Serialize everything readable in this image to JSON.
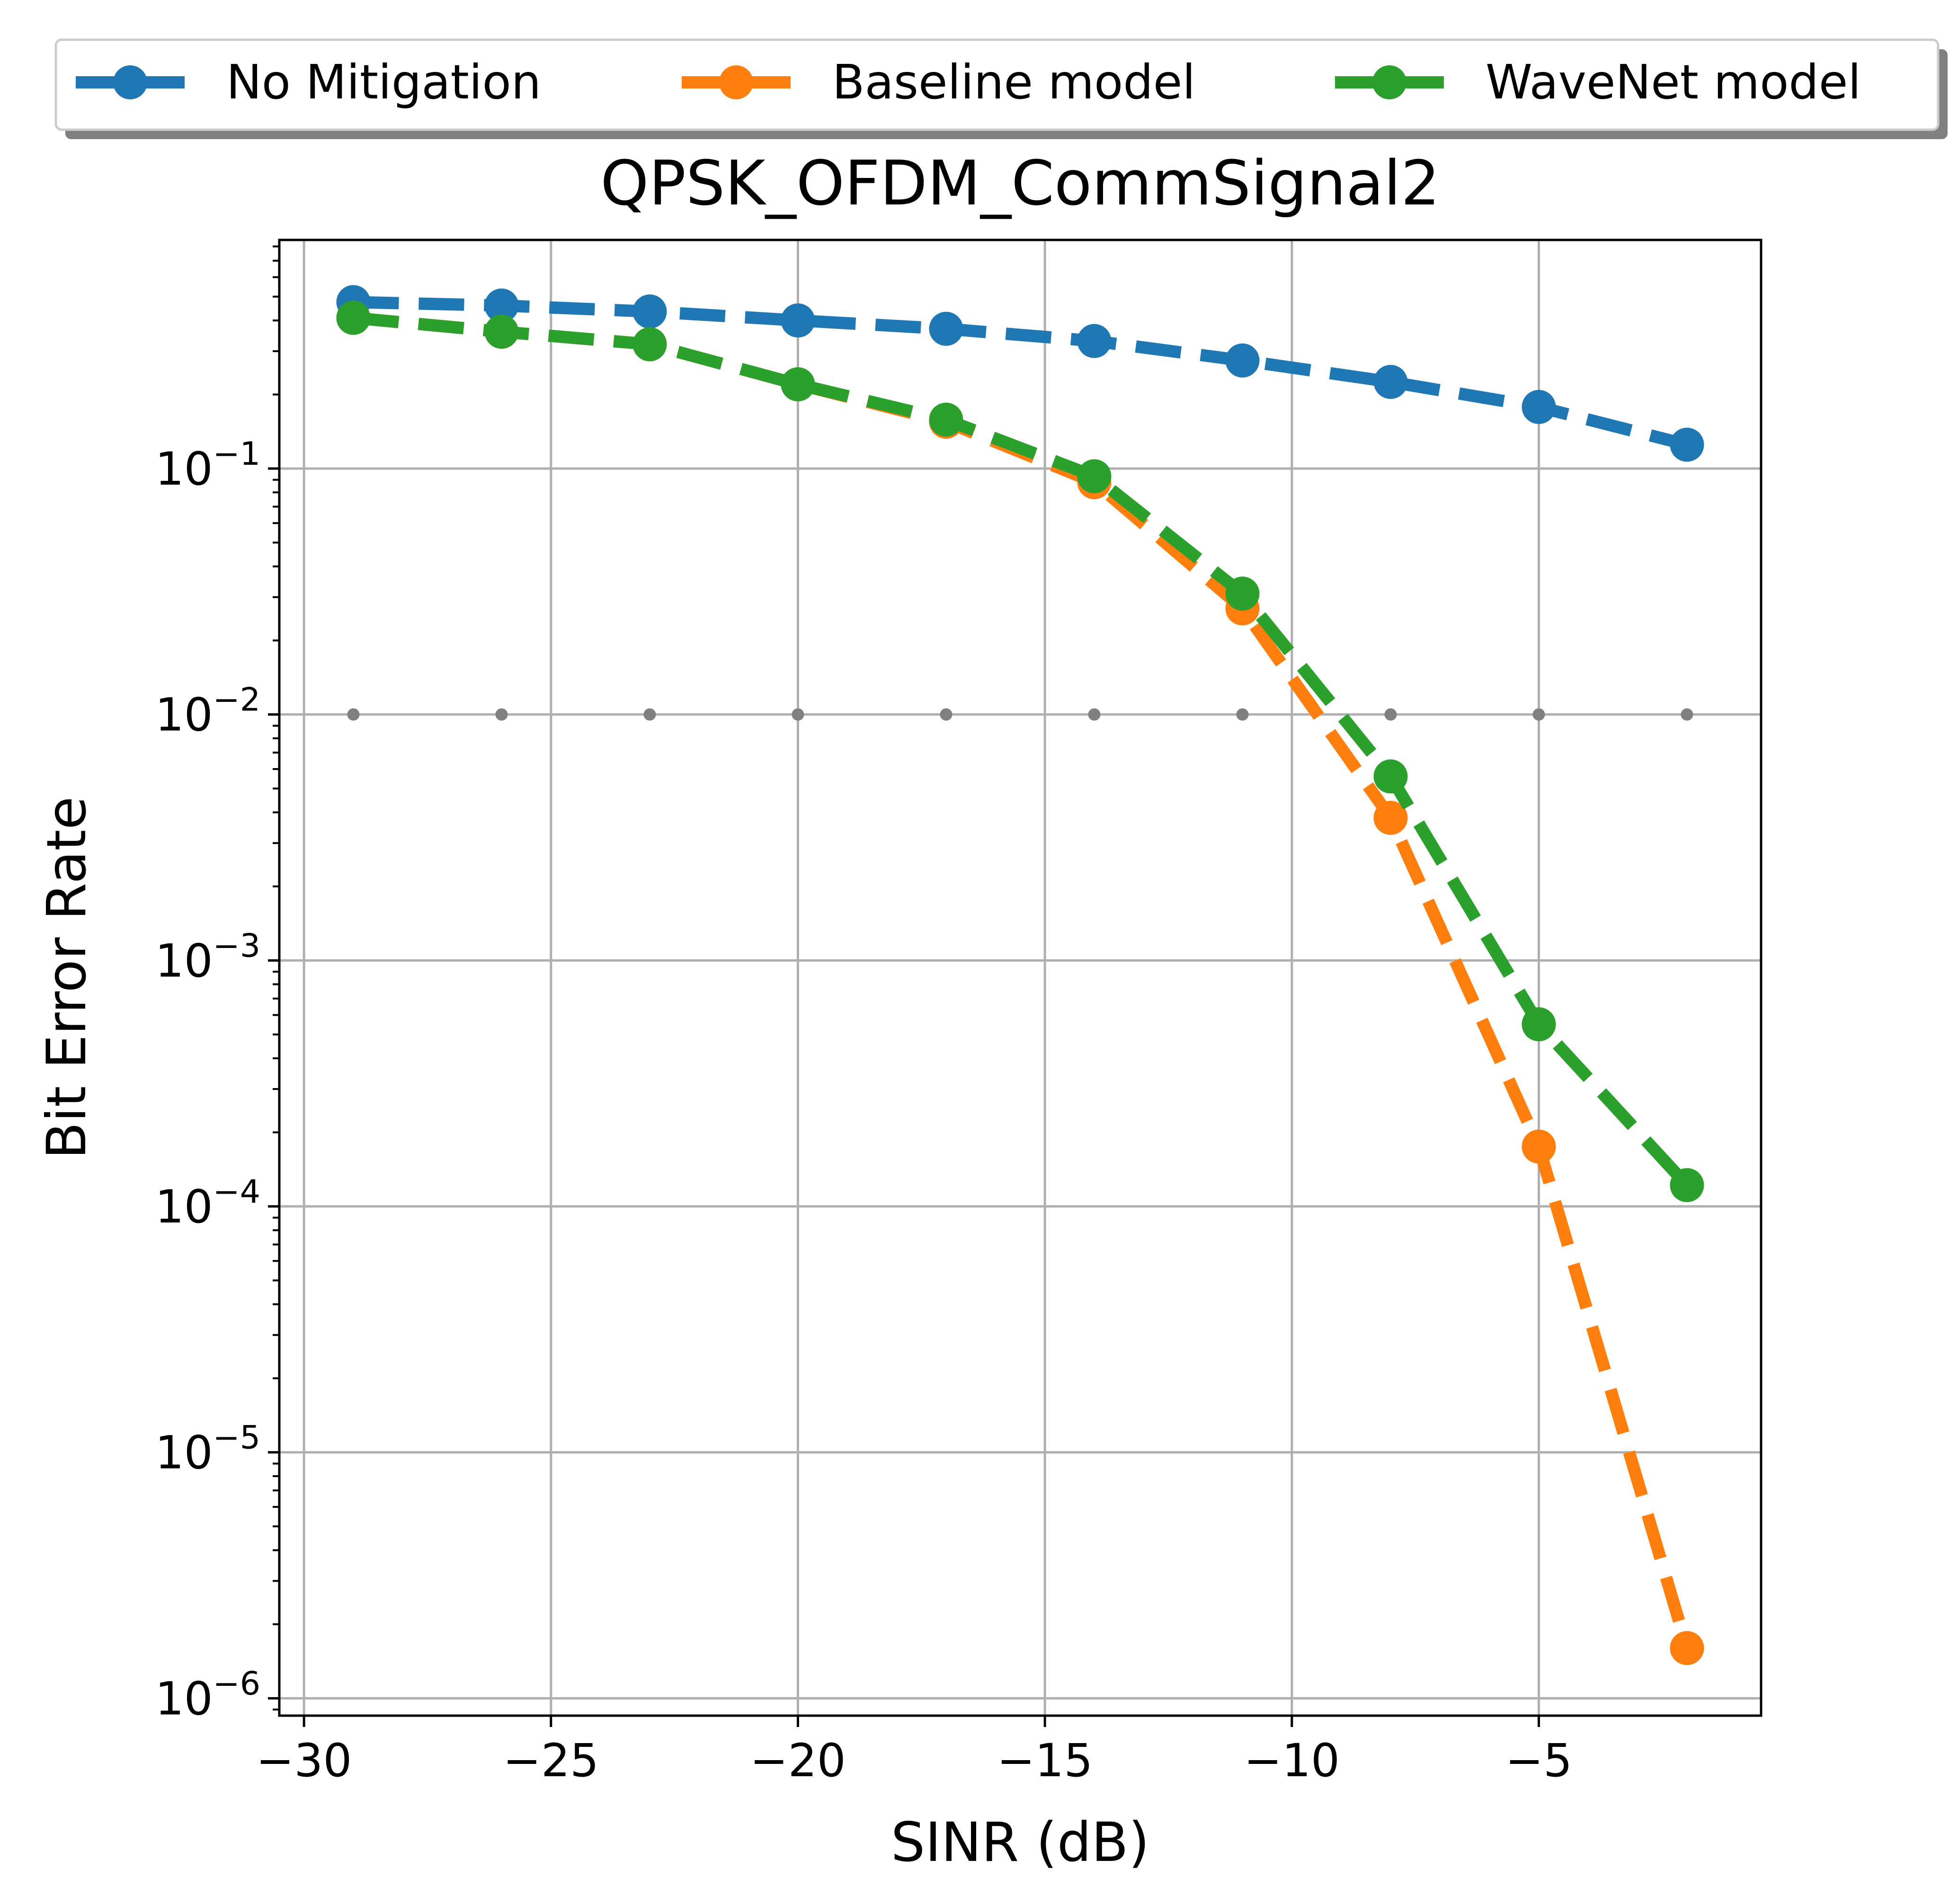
{
  "chart_data": {
    "type": "line",
    "title": "QPSK_OFDM_CommSignal2",
    "xlabel": "SINR (dB)",
    "ylabel": "Bit Error Rate",
    "x": [
      -29,
      -26,
      -23,
      -20,
      -17,
      -14,
      -11,
      -8,
      -5,
      -2
    ],
    "xlim": [
      -30.5,
      -0.5
    ],
    "ylim": [
      8.5e-07,
      0.85
    ],
    "yscale": "log",
    "grid": true,
    "legend_position": "top",
    "x_ticks": [
      -30,
      -25,
      -20,
      -15,
      -10,
      -5
    ],
    "x_tick_labels": [
      "−30",
      "−25",
      "−20",
      "−15",
      "−10",
      "−5"
    ],
    "y_ticks": [
      1e-06,
      1e-05,
      0.0001,
      0.001,
      0.01,
      0.1
    ],
    "y_tick_labels": [
      {
        "base": "10",
        "exp": "−6"
      },
      {
        "base": "10",
        "exp": "−5"
      },
      {
        "base": "10",
        "exp": "−4"
      },
      {
        "base": "10",
        "exp": "−3"
      },
      {
        "base": "10",
        "exp": "−2"
      },
      {
        "base": "10",
        "exp": "−1"
      }
    ],
    "series": [
      {
        "name": "No Mitigation",
        "color": "#1f77b4",
        "values": [
          0.475,
          0.46,
          0.435,
          0.4,
          0.37,
          0.33,
          0.275,
          0.225,
          0.178,
          0.125
        ]
      },
      {
        "name": "Baseline model",
        "color": "#ff7f0e",
        "values": [
          0.41,
          0.36,
          0.32,
          0.22,
          0.155,
          0.088,
          0.027,
          0.0038,
          0.000175,
          1.6e-06
        ]
      },
      {
        "name": "WaveNet model",
        "color": "#2ca02c",
        "values": [
          0.41,
          0.36,
          0.32,
          0.22,
          0.158,
          0.093,
          0.031,
          0.0056,
          0.00055,
          0.000122
        ]
      }
    ],
    "reference_line": {
      "color": "#808080",
      "y": 0.01,
      "x": [
        -29,
        -26,
        -23,
        -20,
        -17,
        -14,
        -11,
        -8,
        -5,
        -2
      ]
    }
  }
}
